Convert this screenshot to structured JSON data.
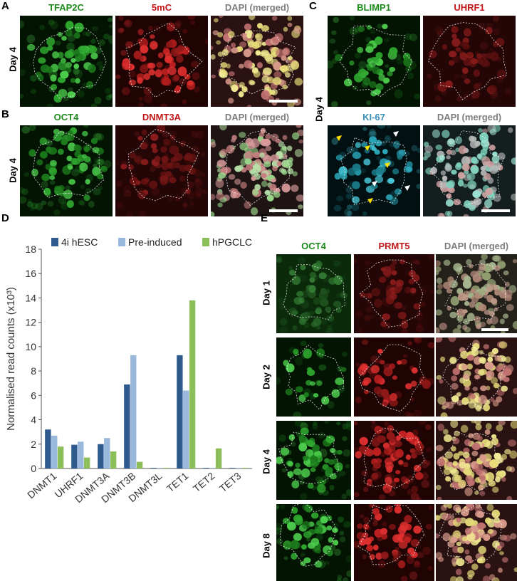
{
  "panels": {
    "A": {
      "letter": "A",
      "columns": [
        "TFAP2C",
        "5mC",
        "DAPI (merged)"
      ],
      "row_label": "Day 4"
    },
    "B": {
      "letter": "B",
      "columns": [
        "OCT4",
        "DNMT3A",
        "DAPI (merged)"
      ],
      "row_label": "Day 4"
    },
    "C": {
      "letter": "C",
      "top_columns": [
        "BLIMP1",
        "UHRF1"
      ],
      "bottom_columns": [
        "KI-67",
        "DAPI (merged)"
      ],
      "row_label": "Day 4"
    },
    "D": {
      "letter": "D"
    },
    "E": {
      "letter": "E",
      "columns": [
        "OCT4",
        "PRMT5",
        "DAPI (merged)"
      ],
      "row_labels": [
        "Day 1",
        "Day 2",
        "Day 4",
        "Day 8"
      ]
    }
  },
  "chart_data": {
    "type": "bar",
    "categories": [
      "DNMT1",
      "UHRF1",
      "DNMT3A",
      "DNMT3B",
      "DNMT3L",
      "TET1",
      "TET2",
      "TET3"
    ],
    "series": [
      {
        "name": "4i hESC",
        "color": "#2e5a8e",
        "values": [
          3.2,
          1.95,
          2.0,
          6.9,
          0.05,
          9.3,
          0.05,
          0.05
        ]
      },
      {
        "name": "Pre-induced",
        "color": "#9ab8dc",
        "values": [
          2.7,
          2.2,
          2.5,
          9.3,
          0.05,
          6.4,
          0.05,
          0.05
        ]
      },
      {
        "name": "hPGCLC",
        "color": "#8cbf5a",
        "values": [
          1.8,
          0.9,
          1.4,
          0.55,
          0.05,
          13.8,
          1.65,
          0.05
        ]
      }
    ],
    "ylabel": "Normalised read counts (x10³)",
    "ylim": [
      0,
      18
    ],
    "yticks": [
      0,
      2,
      4,
      6,
      8,
      10,
      12,
      14,
      16,
      18
    ],
    "grid": false,
    "legend": "top"
  }
}
